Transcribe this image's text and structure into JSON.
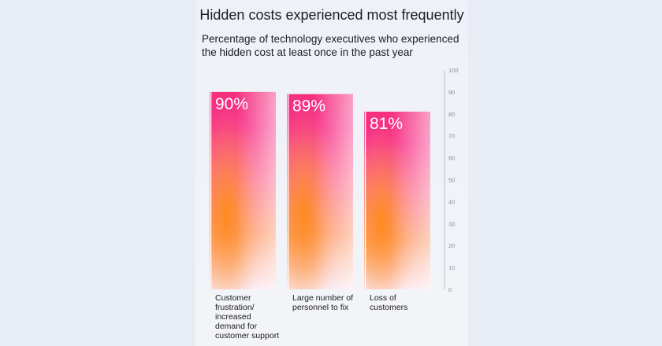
{
  "title": "Hidden costs experienced most frequently",
  "subtitle": "Percentage of technology executives who experienced the hidden cost at least once in the past year",
  "colors": {
    "bar_top": "#f42f7e",
    "bar_mid": "#ff8fb8",
    "bar_warm": "#ff8a1a",
    "axis": "#b9bcc6",
    "text": "#1c1c24"
  },
  "chart_data": {
    "type": "bar",
    "title": "Hidden costs experienced most frequently",
    "subtitle": "Percentage of technology executives who experienced the hidden cost at least once in the past year",
    "categories": [
      "Customer frustration/ increased demand for customer support",
      "Large number of personnel to fix",
      "Loss of customers"
    ],
    "category_lines": [
      [
        "Customer",
        "frustration/",
        "increased",
        "demand for",
        "customer support"
      ],
      [
        "Large number of",
        "personnel to fix"
      ],
      [
        "Loss of",
        "customers"
      ]
    ],
    "values": [
      90,
      89,
      81
    ],
    "value_labels": [
      "90%",
      "89%",
      "81%"
    ],
    "ylim": [
      0,
      100
    ],
    "yticks": [
      0,
      10,
      20,
      30,
      40,
      50,
      60,
      70,
      80,
      90,
      100
    ],
    "grid": false,
    "xlabel": "",
    "ylabel": ""
  }
}
